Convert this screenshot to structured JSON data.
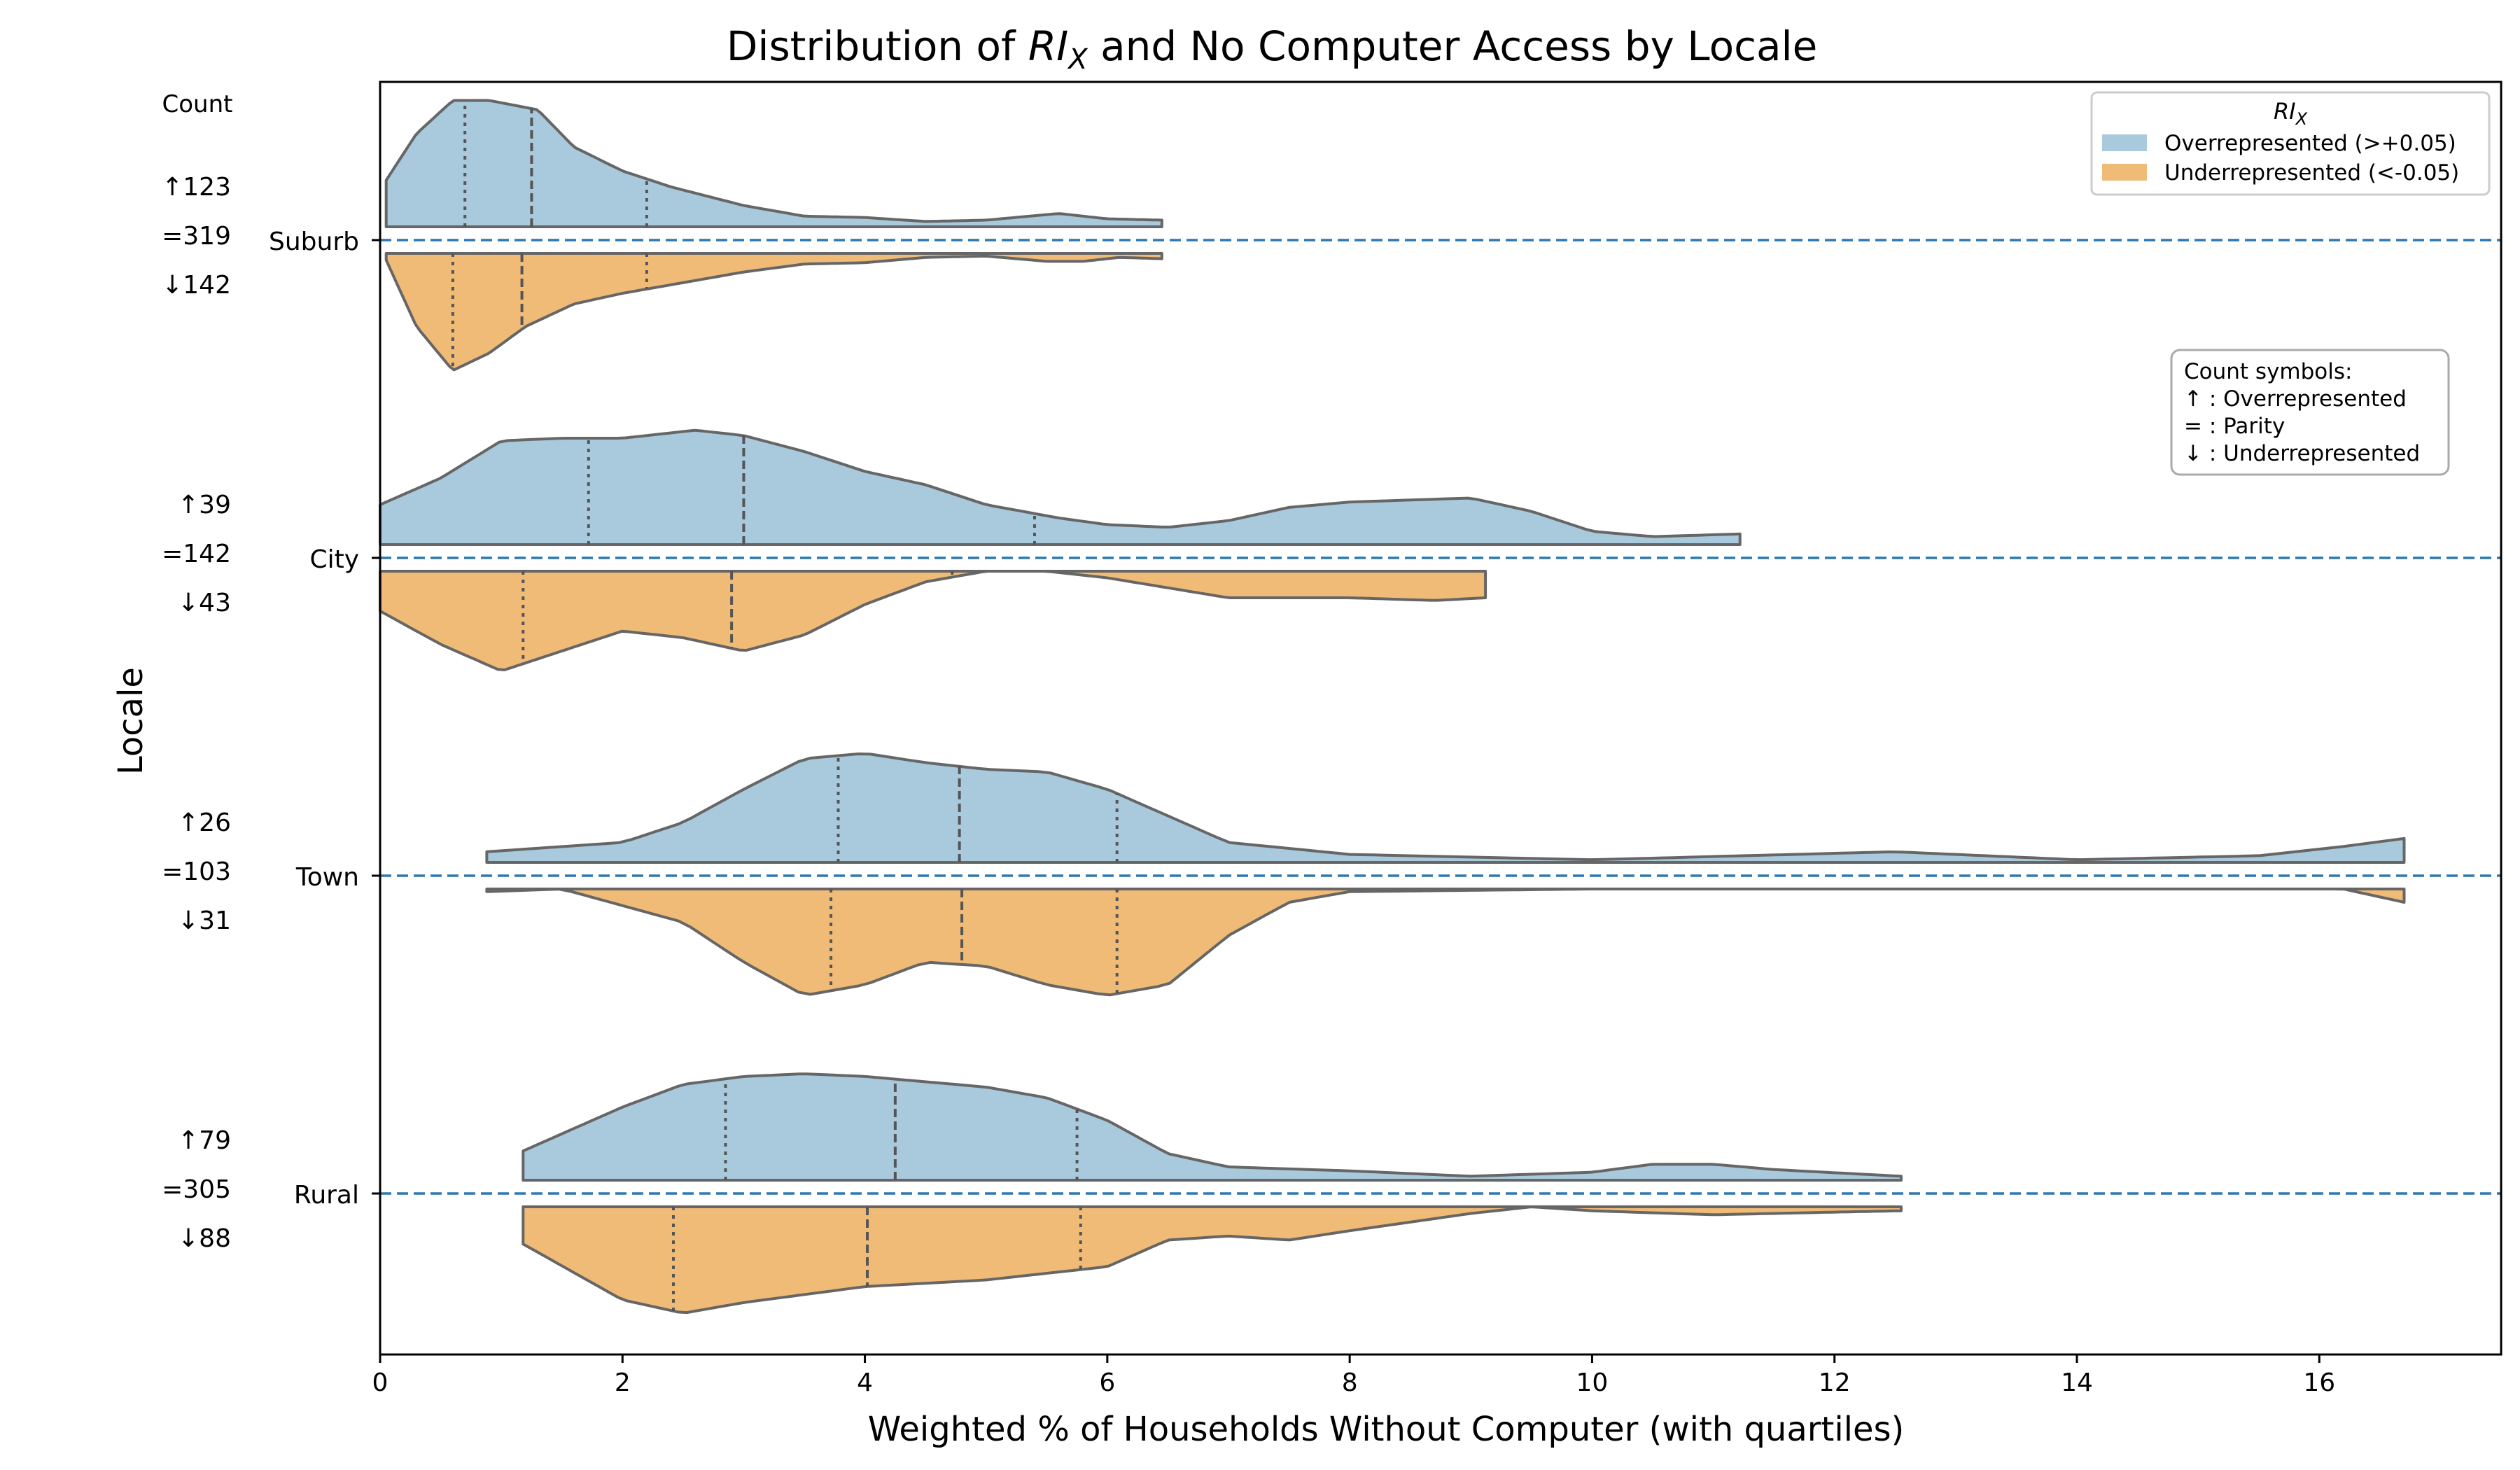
{
  "chart_data": {
    "type": "violin",
    "title_prefix": "Distribution of ",
    "title_math": "RI",
    "title_math_sub": "X",
    "title_suffix": " and No Computer Access by Locale",
    "xlabel": "Weighted % of Households Without Computer (with quartiles)",
    "ylabel": "Locale",
    "xlim": [
      0,
      17.5
    ],
    "x_ticks": [
      0,
      2,
      4,
      6,
      8,
      10,
      12,
      14,
      16
    ],
    "count_header": "Count",
    "colors": {
      "over": "#a9c9dd",
      "under": "#f0bb77",
      "outline": "#666666",
      "ref_line": "#2e78b0"
    },
    "legend": {
      "title_math": "RI",
      "title_math_sub": "X",
      "entries": [
        {
          "label": "Overrepresented (>+0.05)",
          "color": "#a9c9dd"
        },
        {
          "label": "Underrepresented (<-0.05)",
          "color": "#f0bb77"
        }
      ]
    },
    "symbol_box": {
      "lines": [
        "Count symbols:",
        "↑ : Overrepresented",
        "= : Parity",
        "↓ : Underrepresented"
      ]
    },
    "categories": [
      {
        "name": "Suburb",
        "counts": {
          "up": "↑123",
          "eq": "=319",
          "down": "↓142"
        },
        "over": {
          "range": [
            0.05,
            6.45
          ],
          "quartiles": [
            0.7,
            1.25,
            2.2
          ],
          "density": [
            [
              0.05,
              0.35
            ],
            [
              0.3,
              0.7
            ],
            [
              0.6,
              0.95
            ],
            [
              0.9,
              0.95
            ],
            [
              1.3,
              0.88
            ],
            [
              1.6,
              0.6
            ],
            [
              2.0,
              0.42
            ],
            [
              2.4,
              0.3
            ],
            [
              3.0,
              0.16
            ],
            [
              3.5,
              0.08
            ],
            [
              4.0,
              0.07
            ],
            [
              4.5,
              0.04
            ],
            [
              5.0,
              0.05
            ],
            [
              5.6,
              0.1
            ],
            [
              6.0,
              0.06
            ],
            [
              6.45,
              0.05
            ]
          ]
        },
        "under": {
          "range": [
            0.05,
            6.45
          ],
          "quartiles": [
            0.6,
            1.17,
            2.2
          ],
          "density": [
            [
              0.05,
              0.05
            ],
            [
              0.3,
              0.55
            ],
            [
              0.6,
              0.88
            ],
            [
              0.9,
              0.75
            ],
            [
              1.2,
              0.55
            ],
            [
              1.6,
              0.38
            ],
            [
              2.0,
              0.3
            ],
            [
              2.5,
              0.22
            ],
            [
              3.0,
              0.14
            ],
            [
              3.5,
              0.08
            ],
            [
              4.0,
              0.07
            ],
            [
              4.5,
              0.03
            ],
            [
              5.0,
              0.02
            ],
            [
              5.5,
              0.06
            ],
            [
              5.8,
              0.06
            ],
            [
              6.1,
              0.03
            ],
            [
              6.45,
              0.04
            ]
          ]
        }
      },
      {
        "name": "City",
        "counts": {
          "up": "↑39",
          "eq": "=142",
          "down": "↓43"
        },
        "over": {
          "range": [
            0.0,
            11.22
          ],
          "quartiles": [
            1.72,
            3.0,
            5.4
          ],
          "density": [
            [
              0.0,
              0.3
            ],
            [
              0.5,
              0.5
            ],
            [
              1.0,
              0.78
            ],
            [
              1.5,
              0.8
            ],
            [
              2.0,
              0.8
            ],
            [
              2.6,
              0.86
            ],
            [
              3.0,
              0.82
            ],
            [
              3.5,
              0.7
            ],
            [
              4.0,
              0.55
            ],
            [
              4.5,
              0.45
            ],
            [
              5.0,
              0.3
            ],
            [
              5.6,
              0.2
            ],
            [
              6.0,
              0.15
            ],
            [
              6.5,
              0.13
            ],
            [
              7.0,
              0.18
            ],
            [
              7.5,
              0.28
            ],
            [
              8.0,
              0.32
            ],
            [
              9.0,
              0.35
            ],
            [
              9.5,
              0.25
            ],
            [
              10.0,
              0.1
            ],
            [
              10.5,
              0.06
            ],
            [
              11.22,
              0.08
            ]
          ]
        },
        "under": {
          "range": [
            0.0,
            9.12
          ],
          "quartiles": [
            1.18,
            2.9,
            4.72
          ],
          "density": [
            [
              0.0,
              0.3
            ],
            [
              0.5,
              0.55
            ],
            [
              1.0,
              0.75
            ],
            [
              1.5,
              0.6
            ],
            [
              2.0,
              0.45
            ],
            [
              2.5,
              0.5
            ],
            [
              3.0,
              0.6
            ],
            [
              3.5,
              0.48
            ],
            [
              4.0,
              0.25
            ],
            [
              4.5,
              0.08
            ],
            [
              5.0,
              0.0
            ],
            [
              5.5,
              0.0
            ],
            [
              6.0,
              0.05
            ],
            [
              7.0,
              0.2
            ],
            [
              8.0,
              0.2
            ],
            [
              8.7,
              0.22
            ],
            [
              9.12,
              0.2
            ]
          ]
        }
      },
      {
        "name": "Town",
        "counts": {
          "up": "↑26",
          "eq": "=103",
          "down": "↓31"
        },
        "over": {
          "range": [
            0.88,
            16.7
          ],
          "quartiles": [
            3.78,
            4.78,
            6.08
          ],
          "density": [
            [
              0.88,
              0.08
            ],
            [
              2.0,
              0.15
            ],
            [
              2.5,
              0.3
            ],
            [
              3.0,
              0.55
            ],
            [
              3.5,
              0.78
            ],
            [
              4.0,
              0.82
            ],
            [
              4.5,
              0.75
            ],
            [
              5.0,
              0.7
            ],
            [
              5.5,
              0.68
            ],
            [
              6.0,
              0.55
            ],
            [
              6.5,
              0.35
            ],
            [
              7.0,
              0.15
            ],
            [
              8.0,
              0.06
            ],
            [
              10.0,
              0.02
            ],
            [
              12.5,
              0.08
            ],
            [
              14.0,
              0.02
            ],
            [
              15.5,
              0.05
            ],
            [
              16.2,
              0.12
            ],
            [
              16.7,
              0.18
            ]
          ]
        },
        "under": {
          "range": [
            0.88,
            16.7
          ],
          "quartiles": [
            3.72,
            4.8,
            6.08
          ],
          "density": [
            [
              0.88,
              0.02
            ],
            [
              1.5,
              0.0
            ],
            [
              2.5,
              0.25
            ],
            [
              3.0,
              0.55
            ],
            [
              3.5,
              0.8
            ],
            [
              4.0,
              0.72
            ],
            [
              4.5,
              0.55
            ],
            [
              5.0,
              0.58
            ],
            [
              5.5,
              0.72
            ],
            [
              6.0,
              0.8
            ],
            [
              6.5,
              0.72
            ],
            [
              7.0,
              0.35
            ],
            [
              7.5,
              0.1
            ],
            [
              8.0,
              0.02
            ],
            [
              10.0,
              0.0
            ],
            [
              16.2,
              0.0
            ],
            [
              16.7,
              0.1
            ]
          ]
        }
      },
      {
        "name": "Rural",
        "counts": {
          "up": "↑79",
          "eq": "=305",
          "down": "↓88"
        },
        "over": {
          "range": [
            1.18,
            12.55
          ],
          "quartiles": [
            2.85,
            4.25,
            5.75
          ],
          "density": [
            [
              1.18,
              0.22
            ],
            [
              2.0,
              0.55
            ],
            [
              2.5,
              0.72
            ],
            [
              3.0,
              0.78
            ],
            [
              3.5,
              0.8
            ],
            [
              4.0,
              0.78
            ],
            [
              4.5,
              0.74
            ],
            [
              5.0,
              0.7
            ],
            [
              5.5,
              0.62
            ],
            [
              6.0,
              0.45
            ],
            [
              6.5,
              0.2
            ],
            [
              7.0,
              0.1
            ],
            [
              8.0,
              0.07
            ],
            [
              9.0,
              0.03
            ],
            [
              10.0,
              0.06
            ],
            [
              10.5,
              0.12
            ],
            [
              11.0,
              0.12
            ],
            [
              11.5,
              0.08
            ],
            [
              12.55,
              0.03
            ]
          ]
        },
        "under": {
          "range": [
            1.18,
            12.55
          ],
          "quartiles": [
            2.42,
            4.02,
            5.78
          ],
          "density": [
            [
              1.18,
              0.28
            ],
            [
              2.0,
              0.7
            ],
            [
              2.5,
              0.8
            ],
            [
              3.0,
              0.72
            ],
            [
              4.0,
              0.6
            ],
            [
              5.0,
              0.55
            ],
            [
              6.0,
              0.45
            ],
            [
              6.5,
              0.25
            ],
            [
              7.0,
              0.22
            ],
            [
              7.5,
              0.25
            ],
            [
              8.0,
              0.18
            ],
            [
              9.0,
              0.05
            ],
            [
              9.5,
              0.0
            ],
            [
              10.0,
              0.03
            ],
            [
              11.0,
              0.06
            ],
            [
              12.0,
              0.04
            ],
            [
              12.55,
              0.03
            ]
          ]
        }
      }
    ]
  }
}
